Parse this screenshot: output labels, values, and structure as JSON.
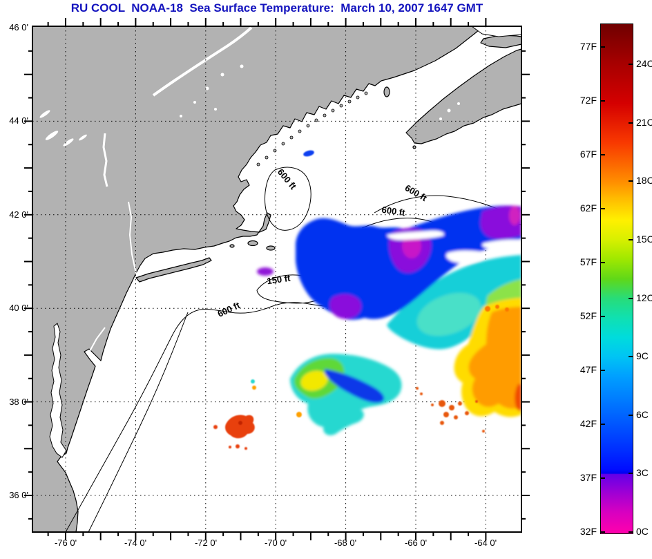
{
  "title": "RU COOL  NOAA-18  Sea Surface Temperature:  March 10, 2007 1647 GMT",
  "map": {
    "x_axis_labels": [
      "-76 0'",
      "-74 0'",
      "-72 0'",
      "-70 0'",
      "-68 0'",
      "-66 0'",
      "-64 0'"
    ],
    "y_axis_labels": [
      "46 0'",
      "44 0'",
      "42 0'",
      "40 0'",
      "38 0'",
      "36 0'"
    ],
    "contour_labels": [
      "600 ft",
      "600 ft",
      "600 ft",
      "150 ft",
      "600 ft"
    ]
  },
  "colorbar": {
    "fahrenheit_labels": [
      "77F",
      "72F",
      "67F",
      "62F",
      "57F",
      "52F",
      "47F",
      "42F",
      "37F",
      "32F"
    ],
    "celsius_labels": [
      "24C",
      "21C",
      "18C",
      "15C",
      "12C",
      "9C",
      "6C",
      "3C",
      "0C"
    ]
  },
  "colors": {
    "title_text": "#1414BE",
    "land": "#B2B2B2",
    "ocean": "#FFFFFF",
    "coastline": "#000000",
    "cold_magenta": "#C818C8",
    "cold_purple": "#8A10DC",
    "cold_blue": "#0030F0",
    "cyan": "#18CFD8",
    "green": "#5FD838",
    "yellow": "#FFDC00",
    "orange": "#FF9C00",
    "warm_red": "#E84010"
  }
}
